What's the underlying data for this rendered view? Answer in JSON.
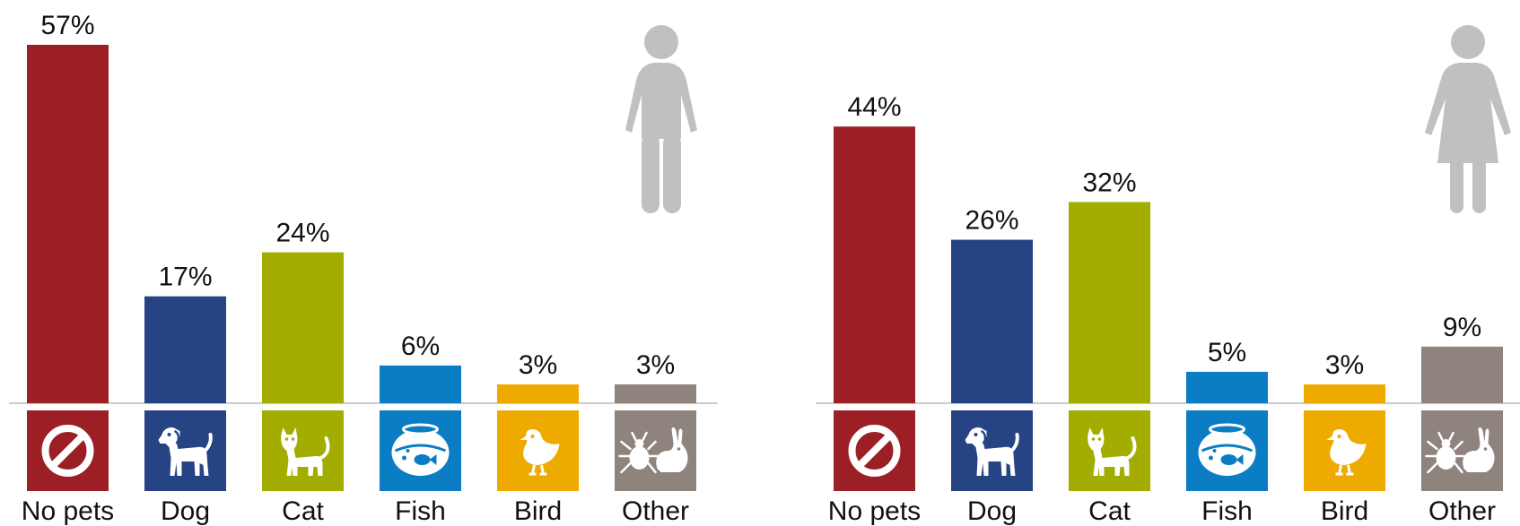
{
  "colors": {
    "No pets": "#9B1F24",
    "Dog": "#264384",
    "Cat": "#A2AD00",
    "Fish": "#0A7DC4",
    "Bird": "#EFAA00",
    "Other": "#8E837D",
    "figure": "#C0C0C0",
    "baseline": "#CCCCCC"
  },
  "chart_data": [
    {
      "type": "bar",
      "figure_icon": "man-icon",
      "categories": [
        "No pets",
        "Dog",
        "Cat",
        "Fish",
        "Bird",
        "Other"
      ],
      "category_icons": [
        "no-pets-icon",
        "dog-icon",
        "cat-icon",
        "fishbowl-icon",
        "bird-icon",
        "tick-and-rabbit-icon"
      ],
      "values": [
        57,
        17,
        24,
        6,
        3,
        3
      ],
      "labels": [
        "57%",
        "17%",
        "24%",
        "6%",
        "3%",
        "3%"
      ],
      "ylim": [
        0,
        57
      ]
    },
    {
      "type": "bar",
      "figure_icon": "woman-icon",
      "categories": [
        "No pets",
        "Dog",
        "Cat",
        "Fish",
        "Bird",
        "Other"
      ],
      "category_icons": [
        "no-pets-icon",
        "dog-icon",
        "cat-icon",
        "fishbowl-icon",
        "bird-icon",
        "tick-and-rabbit-icon"
      ],
      "values": [
        44,
        26,
        32,
        5,
        3,
        9
      ],
      "labels": [
        "44%",
        "26%",
        "32%",
        "5%",
        "3%",
        "9%"
      ],
      "ylim": [
        0,
        57
      ]
    }
  ]
}
